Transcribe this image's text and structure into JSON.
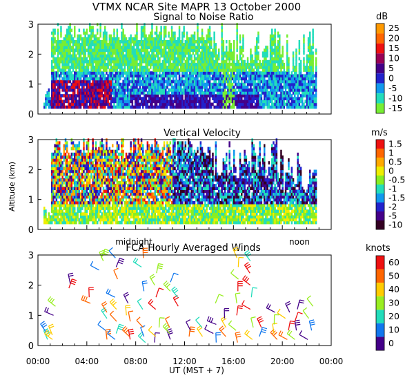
{
  "figure": {
    "suptitle": "VTMX   NCAR Site   MAPR 13 October 2000",
    "xlabel": "UT   (MST + 7)",
    "shared_ylabel": "Altitude (km)"
  },
  "chart_data": [
    {
      "type": "heatmap",
      "title": "Signal to Noise Ratio",
      "unit": "dB",
      "xlim": [
        0,
        24
      ],
      "ylim": [
        0,
        3
      ],
      "yticks": [
        "0",
        "1",
        "2",
        "3"
      ],
      "colorbar": {
        "labels": [
          "25",
          "20",
          "15",
          "10",
          "5",
          "0",
          "-5",
          "-10",
          "-15"
        ],
        "colors": [
          "#ff9900",
          "#ff6600",
          "#ee1111",
          "#990055",
          "#440088",
          "#2222cc",
          "#1199ee",
          "#22ddbb",
          "#77ee33"
        ]
      }
    },
    {
      "type": "heatmap",
      "title": "Vertical Velocity",
      "unit": "m/s",
      "xlim": [
        0,
        24
      ],
      "ylim": [
        0,
        3
      ],
      "yticks": [
        "0",
        "1",
        "2",
        "3"
      ],
      "colorbar": {
        "labels": [
          "1.5",
          "1",
          "0.5",
          "0",
          "-0.5",
          "-1",
          "-1.5",
          "-2",
          "-5",
          "-10"
        ],
        "colors": [
          "#ee1111",
          "#ff6600",
          "#ffaa00",
          "#eeee00",
          "#88ee22",
          "#22ddbb",
          "#1199ee",
          "#2222cc",
          "#440088",
          "#330022"
        ]
      }
    },
    {
      "type": "scatter",
      "title": "FCA Hourly Averaged Winds",
      "unit": "knots",
      "xlim": [
        0,
        24
      ],
      "ylim": [
        0,
        3
      ],
      "yticks": [
        "0",
        "1",
        "2",
        "3"
      ],
      "xticks": [
        "00:00",
        "04:00",
        "08:00",
        "12:00",
        "16:00",
        "20:00",
        "00:00"
      ],
      "annotations": [
        "midnight",
        "noon"
      ],
      "colorbar": {
        "labels": [
          "60",
          "50",
          "40",
          "30",
          "20",
          "10",
          "0"
        ],
        "colors": [
          "#ee1111",
          "#ff6600",
          "#ffcc00",
          "#99ee22",
          "#22ddbb",
          "#1177ee",
          "#440088"
        ]
      }
    }
  ]
}
